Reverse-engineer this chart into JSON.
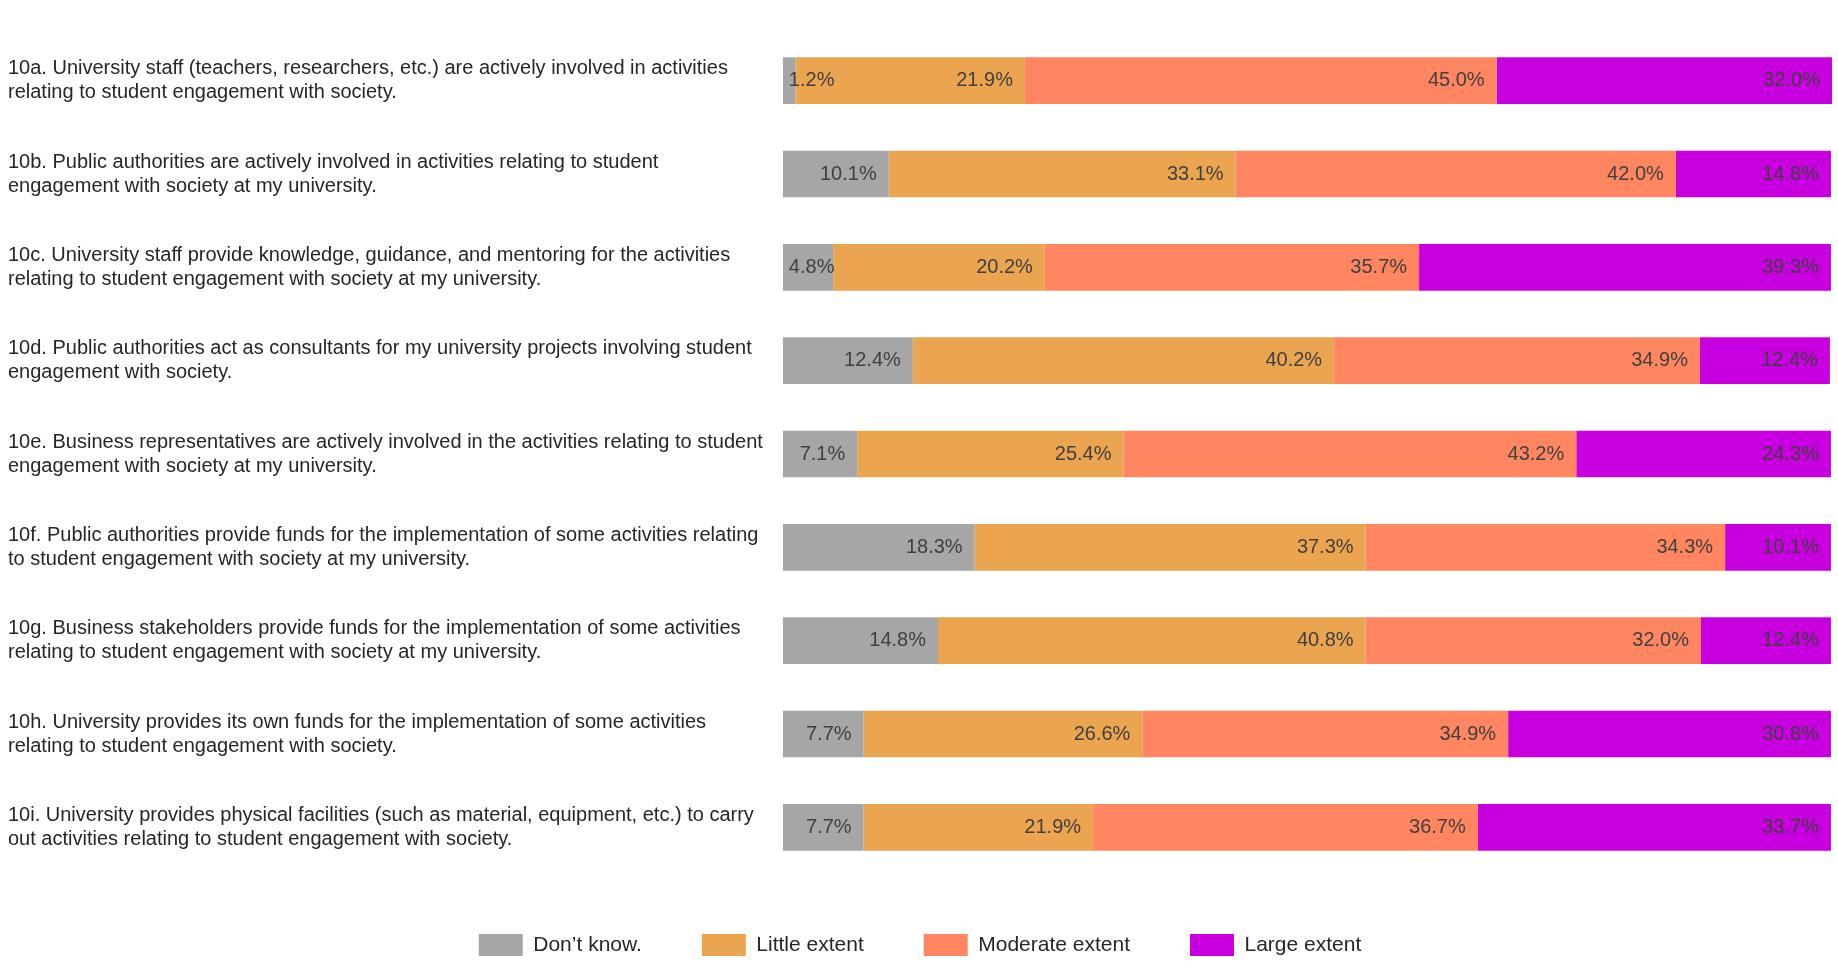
{
  "chart_data": {
    "type": "bar",
    "orientation": "horizontal",
    "stacked": true,
    "legend": "bottom",
    "grid": false,
    "categories": [
      "10a. University staff (teachers, researchers, etc.) are actively involved in activities relating to student engagement with society.",
      "10b. Public authorities are actively involved in activities relating to student engagement with society at my university.",
      "10c. University staff provide knowledge, guidance, and mentoring for the activities relating to student engagement with society at my university.",
      "10d. Public authorities act as consultants for my university projects involving student engagement with society.",
      "10e. Business representatives are actively involved in the activities relating to student engagement with society at my university.",
      "10f. Public authorities provide funds for the implementation of some activities relating to student engagement with society at my university.",
      "10g. Business stakeholders provide funds for the implementation of some activities relating to student engagement with society at my university.",
      "10h. University provides its own funds for the implementation of some activities relating to student engagement with society.",
      "10i. University provides physical facilities (such as material, equipment, etc.) to carry out activities relating to student engagement with society."
    ],
    "series": [
      {
        "name": "Don’t know.",
        "color": "#a6a6a6",
        "values": [
          1.2,
          10.1,
          4.8,
          12.4,
          7.1,
          18.3,
          14.8,
          7.7,
          7.7
        ],
        "value_labels": [
          "1.2%",
          "10.1%",
          "4.8%",
          "12.4%",
          "7.1%",
          "18.3%",
          "14.8%",
          "7.7%",
          "7.7%"
        ]
      },
      {
        "name": "Little extent",
        "color": "#eba550",
        "values": [
          21.9,
          33.1,
          20.2,
          40.2,
          25.4,
          37.3,
          40.8,
          26.6,
          21.9
        ],
        "value_labels": [
          "21.9%",
          "33.1%",
          "20.2%",
          "40.2%",
          "25.4%",
          "37.3%",
          "40.8%",
          "26.6%",
          "21.9%"
        ]
      },
      {
        "name": "Moderate extent",
        "color": "#ff8660",
        "values": [
          45.0,
          42.0,
          35.7,
          34.9,
          43.2,
          34.3,
          32.0,
          34.9,
          36.7
        ],
        "value_labels": [
          "45.0%",
          "42.0%",
          "35.7%",
          "34.9%",
          "43.2%",
          "34.3%",
          "32.0%",
          "34.9%",
          "36.7%"
        ]
      },
      {
        "name": "Large extent",
        "color": "#c800e0",
        "values": [
          32.0,
          14.8,
          39.3,
          12.4,
          24.3,
          10.1,
          12.4,
          30.8,
          33.7
        ],
        "value_labels": [
          "32.0%",
          "14.8%",
          "39.3%",
          "12.4%",
          "24.3%",
          "10.1%",
          "12.4%",
          "30.8%",
          "33.7%"
        ]
      }
    ]
  }
}
